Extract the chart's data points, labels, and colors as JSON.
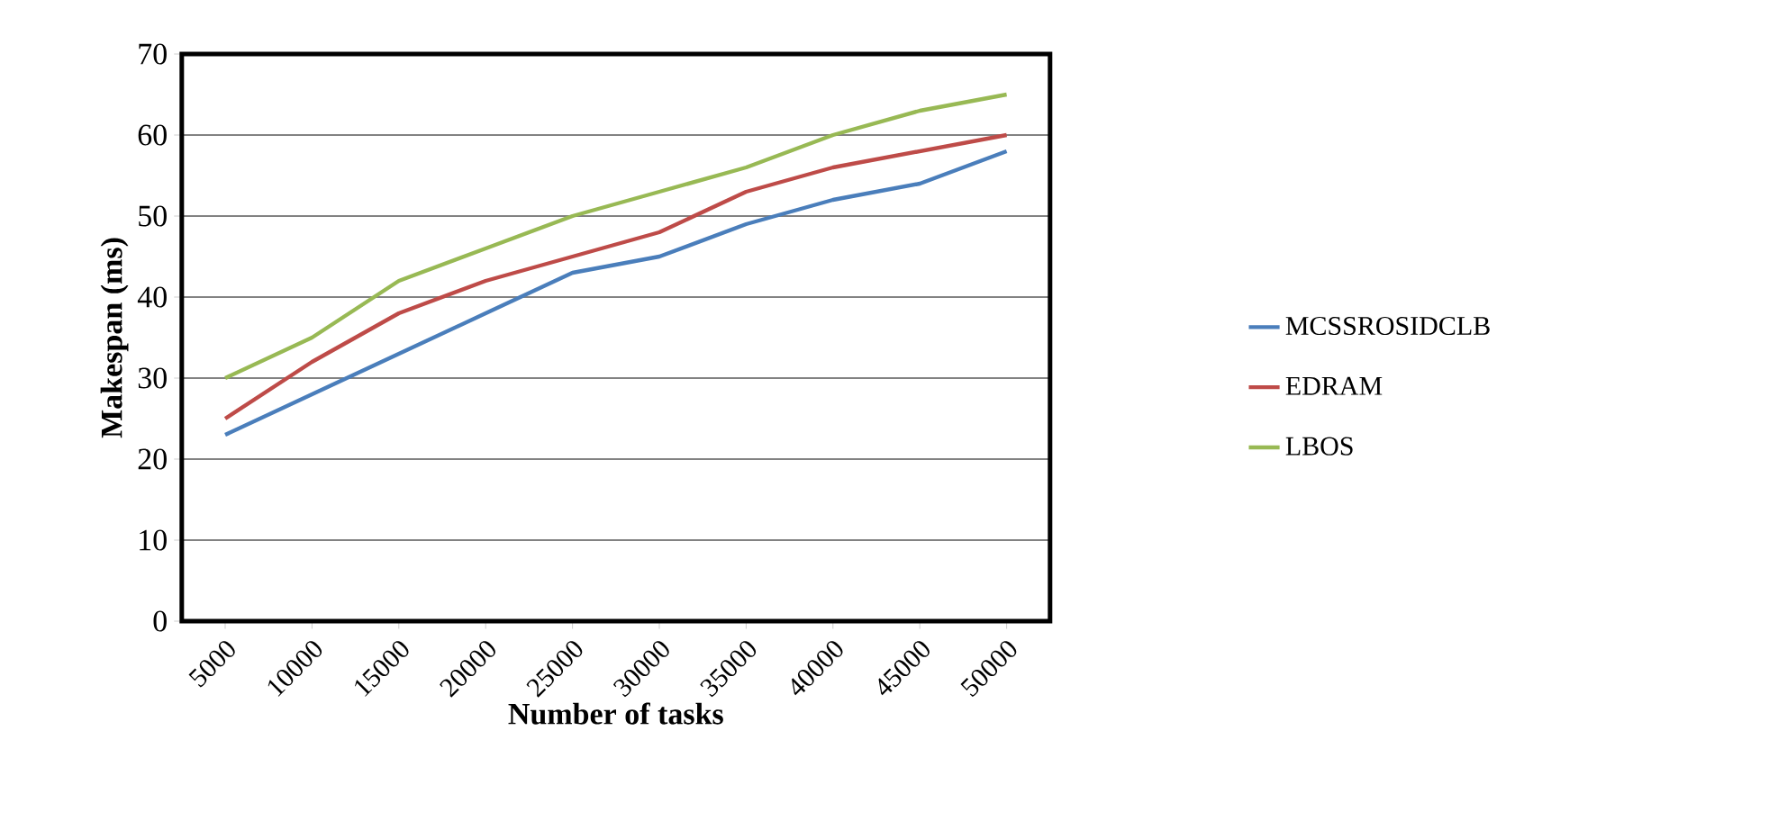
{
  "chart_data": {
    "type": "line",
    "xlabel": "Number of tasks",
    "ylabel": "Makespan (ms)",
    "categories": [
      "5000",
      "10000",
      "15000",
      "20000",
      "25000",
      "30000",
      "35000",
      "40000",
      "45000",
      "50000"
    ],
    "series": [
      {
        "name": "MCSSROSIDCLB",
        "color": "#4a7ebb",
        "values": [
          23,
          28,
          33,
          38,
          43,
          45,
          49,
          52,
          54,
          58
        ]
      },
      {
        "name": "EDRAM",
        "color": "#be4b48",
        "values": [
          25,
          32,
          38,
          42,
          45,
          48,
          53,
          56,
          58,
          60
        ]
      },
      {
        "name": "LBOS",
        "color": "#98b954",
        "values": [
          30,
          35,
          42,
          46,
          50,
          53,
          56,
          60,
          63,
          65
        ]
      }
    ],
    "ylim": [
      0,
      70
    ],
    "yticks": [
      0,
      10,
      20,
      30,
      40,
      50,
      60,
      70
    ],
    "grid": "y",
    "legend": "right"
  }
}
